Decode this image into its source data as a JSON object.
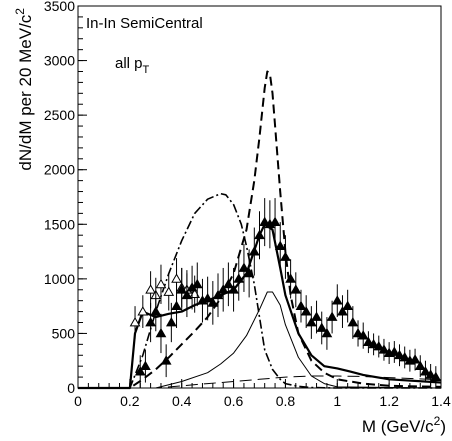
{
  "chart_data": {
    "type": "line",
    "title": "",
    "annotations": [
      "In-In SemiCentral",
      "all p",
      "T"
    ],
    "xlabel_main": "M (GeV/c",
    "xlabel_sup": "2",
    "xlabel_close": ")",
    "ylabel_main": "dN/dM per 20 MeV/c",
    "ylabel_sup": "2",
    "xlim": [
      0,
      1.4
    ],
    "ylim": [
      0,
      3500
    ],
    "x_ticks": [
      0,
      0.2,
      0.4,
      0.6,
      0.8,
      1.0,
      1.2,
      1.4
    ],
    "x_tick_labels": [
      "0",
      "0.2",
      "0.4",
      "0.6",
      "0.8",
      "1",
      "1.2",
      "1.4"
    ],
    "y_ticks": [
      0,
      500,
      1000,
      1500,
      2000,
      2500,
      3000,
      3500
    ],
    "y_tick_labels": [
      "0",
      "500",
      "1000",
      "1500",
      "2000",
      "2500",
      "3000",
      "3500"
    ],
    "grid": false,
    "series": [
      {
        "style": "dashed",
        "x": [
          0.0,
          0.2,
          0.25,
          0.3,
          0.35,
          0.4,
          0.45,
          0.5,
          0.55,
          0.6,
          0.65,
          0.68,
          0.7,
          0.72,
          0.73,
          0.74,
          0.75,
          0.76,
          0.78,
          0.8,
          0.82,
          0.85,
          0.9,
          0.95,
          1.0,
          1.1,
          1.2,
          1.4
        ],
        "y": [
          0,
          0,
          80,
          170,
          280,
          400,
          520,
          650,
          820,
          1050,
          1450,
          1900,
          2300,
          2750,
          2900,
          2880,
          2700,
          2400,
          1800,
          1250,
          850,
          500,
          250,
          140,
          80,
          40,
          20,
          10
        ]
      },
      {
        "style": "dash-dot",
        "x": [
          0.0,
          0.2,
          0.25,
          0.3,
          0.35,
          0.4,
          0.45,
          0.5,
          0.55,
          0.57,
          0.6,
          0.63,
          0.65,
          0.68,
          0.7,
          0.72,
          0.75,
          0.78,
          0.8,
          0.85,
          0.9,
          1.0,
          1.4
        ],
        "y": [
          0,
          0,
          300,
          700,
          1050,
          1350,
          1600,
          1730,
          1780,
          1770,
          1680,
          1500,
          1300,
          950,
          650,
          350,
          170,
          80,
          40,
          15,
          5,
          0,
          0
        ]
      },
      {
        "style": "solid-thick",
        "x": [
          0.0,
          0.2,
          0.22,
          0.25,
          0.3,
          0.35,
          0.4,
          0.45,
          0.5,
          0.55,
          0.6,
          0.65,
          0.7,
          0.72,
          0.75,
          0.78,
          0.8,
          0.85,
          0.9,
          0.95,
          1.0,
          1.05,
          1.1,
          1.2,
          1.4
        ],
        "y": [
          0,
          0,
          500,
          700,
          650,
          680,
          700,
          760,
          800,
          850,
          900,
          1050,
          1400,
          1500,
          1450,
          1100,
          850,
          500,
          300,
          200,
          180,
          150,
          120,
          80,
          50
        ]
      },
      {
        "style": "solid-thin",
        "x": [
          0.0,
          0.3,
          0.4,
          0.5,
          0.55,
          0.6,
          0.65,
          0.7,
          0.73,
          0.75,
          0.78,
          0.8,
          0.85,
          0.9,
          0.95,
          1.0,
          1.4
        ],
        "y": [
          0,
          0,
          60,
          140,
          220,
          320,
          480,
          720,
          880,
          880,
          760,
          580,
          280,
          110,
          40,
          10,
          0
        ]
      },
      {
        "style": "long-dashed",
        "x": [
          0.0,
          0.3,
          0.4,
          0.5,
          0.6,
          0.7,
          0.8,
          0.9,
          1.0,
          1.1,
          1.2,
          1.3,
          1.4
        ],
        "y": [
          0,
          0,
          20,
          40,
          60,
          80,
          100,
          110,
          110,
          105,
          95,
          85,
          75
        ]
      },
      {
        "style": "open-triangles",
        "x": [
          0.22,
          0.25,
          0.28,
          0.3,
          0.32,
          0.35,
          0.38,
          0.4,
          0.42,
          0.45
        ],
        "y": [
          600,
          700,
          900,
          850,
          950,
          880,
          1000,
          920,
          900,
          860
        ],
        "err": [
          150,
          150,
          170,
          160,
          180,
          170,
          190,
          180,
          180,
          170
        ]
      },
      {
        "style": "filled-triangles",
        "x": [
          0.24,
          0.26,
          0.28,
          0.3,
          0.32,
          0.34,
          0.36,
          0.38,
          0.4,
          0.42,
          0.44,
          0.46,
          0.48,
          0.5,
          0.52,
          0.54,
          0.56,
          0.58,
          0.6,
          0.62,
          0.64,
          0.66,
          0.68,
          0.7,
          0.72,
          0.74,
          0.76,
          0.78,
          0.8,
          0.82,
          0.84,
          0.86,
          0.88,
          0.9,
          0.92,
          0.94,
          0.96,
          0.98,
          1.0,
          1.02,
          1.04,
          1.06,
          1.08,
          1.1,
          1.12,
          1.14,
          1.16,
          1.18,
          1.2,
          1.22,
          1.24,
          1.26,
          1.28,
          1.3,
          1.32,
          1.34,
          1.36,
          1.38
        ],
        "y": [
          150,
          200,
          600,
          700,
          500,
          250,
          600,
          750,
          900,
          850,
          920,
          950,
          800,
          820,
          780,
          850,
          900,
          950,
          900,
          1000,
          1100,
          1050,
          1250,
          1400,
          1520,
          1500,
          1520,
          1300,
          1200,
          1000,
          900,
          750,
          700,
          600,
          650,
          550,
          500,
          650,
          800,
          700,
          750,
          600,
          500,
          480,
          420,
          400,
          380,
          350,
          320,
          330,
          300,
          280,
          250,
          260,
          200,
          150,
          120,
          100
        ],
        "err": [
          150,
          150,
          180,
          180,
          180,
          150,
          180,
          200,
          200,
          200,
          200,
          200,
          200,
          200,
          200,
          200,
          200,
          200,
          200,
          200,
          220,
          220,
          220,
          220,
          220,
          220,
          220,
          220,
          200,
          180,
          160,
          150,
          150,
          150,
          150,
          150,
          150,
          150,
          150,
          150,
          150,
          150,
          120,
          120,
          100,
          100,
          100,
          100,
          100,
          100,
          100,
          100,
          100,
          100,
          100,
          100,
          100,
          100
        ]
      }
    ]
  }
}
